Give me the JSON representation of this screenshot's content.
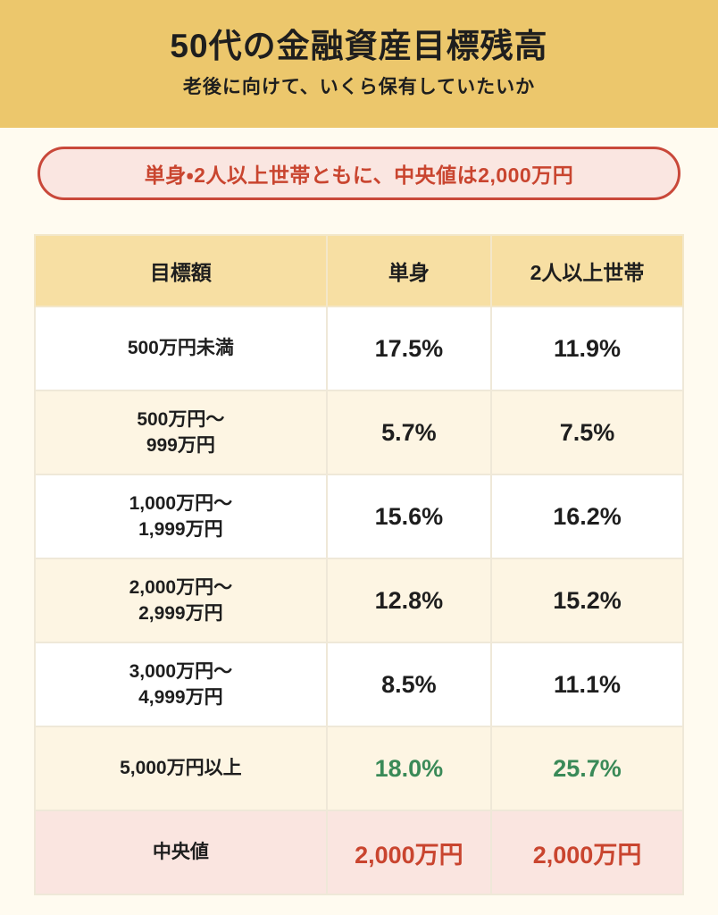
{
  "header": {
    "title": "50代の金融資産目標残高",
    "subtitle": "老後に向けて、いくら保有していたいか"
  },
  "callout": {
    "text": "単身・2人以上世帯ともに、中央値は2,000万円"
  },
  "table": {
    "columns": [
      "目標額",
      "単身",
      "2人以上世帯"
    ],
    "rows": [
      {
        "label": "500万円未満",
        "single": "17.5%",
        "multi": "11.9%"
      },
      {
        "label": "500万円〜\n999万円",
        "single": "5.7%",
        "multi": "7.5%"
      },
      {
        "label": "1,000万円〜\n1,999万円",
        "single": "15.6%",
        "multi": "16.2%"
      },
      {
        "label": "2,000万円〜\n2,999万円",
        "single": "12.8%",
        "multi": "15.2%"
      },
      {
        "label": "3,000万円〜\n4,999万円",
        "single": "8.5%",
        "multi": "11.1%"
      },
      {
        "label": "5,000万円以上",
        "single": "18.0%",
        "multi": "25.7%"
      },
      {
        "label": "中央値",
        "single": "2,000万円",
        "multi": "2,000万円"
      }
    ]
  },
  "colors": {
    "hero_background": "#ECC76C",
    "page_background": "#FFFBF0",
    "table_header_background": "#F7DFA3",
    "row_cream": "#FDF5E3",
    "row_white": "#FFFFFF",
    "row_pink": "#FAE5E0",
    "callout_background": "#FAE6E1",
    "accent_red": "#C9452F",
    "accent_green": "#3A8A58",
    "text": "#1E1E1E"
  },
  "chart_data": {
    "type": "table",
    "title": "50代の金融資産目標残高",
    "subtitle": "老後に向けて、いくら保有していたいか",
    "annotation": "単身・2人以上世帯ともに、中央値は2,000万円",
    "categories": [
      "500万円未満",
      "500万円〜999万円",
      "1,000万円〜1,999万円",
      "2,000万円〜2,999万円",
      "3,000万円〜4,999万円",
      "5,000万円以上"
    ],
    "series": [
      {
        "name": "単身",
        "values": [
          17.5,
          5.7,
          15.6,
          12.8,
          8.5,
          18.0
        ],
        "median": "2,000万円"
      },
      {
        "name": "2人以上世帯",
        "values": [
          11.9,
          7.5,
          16.2,
          15.2,
          11.1,
          25.7
        ],
        "median": "2,000万円"
      }
    ],
    "unit": "%",
    "highlighted_rows": {
      "5,000万円以上": "green",
      "中央値": "red"
    }
  }
}
